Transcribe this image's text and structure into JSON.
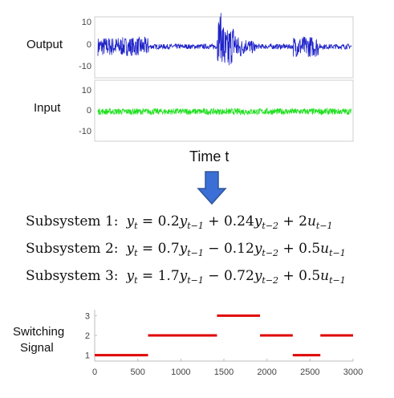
{
  "top_panel": {
    "output_label": "Output",
    "input_label": "Input",
    "time_label": "Time t",
    "output_yticks": [
      "10",
      "0",
      "-10"
    ],
    "input_yticks": [
      "10",
      "0",
      "-10"
    ],
    "output_color": "#1f23c8",
    "input_color": "#22e022"
  },
  "arrow_color": "#3b6fd6",
  "equations": [
    {
      "label": "Subsystem 1:",
      "lhs": "y",
      "lhs_sub": "t",
      "terms": [
        {
          "op": "=",
          "coef": "0.2",
          "var": "y",
          "sub": "t−1"
        },
        {
          "op": "+",
          "coef": "0.24",
          "var": "y",
          "sub": "t−2"
        },
        {
          "op": "+",
          "coef": "2",
          "var": "u",
          "sub": "t−1"
        }
      ]
    },
    {
      "label": "Subsystem 2:",
      "lhs": "y",
      "lhs_sub": "t",
      "terms": [
        {
          "op": "=",
          "coef": "0.7",
          "var": "y",
          "sub": "t−1"
        },
        {
          "op": "−",
          "coef": "0.12",
          "var": "y",
          "sub": "t−2"
        },
        {
          "op": "+",
          "coef": "0.5",
          "var": "u",
          "sub": "t−1"
        }
      ]
    },
    {
      "label": "Subsystem 3:",
      "lhs": "y",
      "lhs_sub": "t",
      "terms": [
        {
          "op": "=",
          "coef": "1.7",
          "var": "y",
          "sub": "t−1"
        },
        {
          "op": "−",
          "coef": "0.72",
          "var": "y",
          "sub": "t−2"
        },
        {
          "op": "+",
          "coef": "0.5",
          "var": "u",
          "sub": "t−1"
        }
      ]
    }
  ],
  "switching": {
    "label_line1": "Switching",
    "label_line2": "Signal",
    "color": "#e00000",
    "xticks": [
      "0",
      "500",
      "1000",
      "1500",
      "2000",
      "2500",
      "3000"
    ],
    "yticks": [
      "3",
      "2",
      "1"
    ]
  },
  "chart_data": {
    "type": "line",
    "xlim": [
      0,
      3000
    ],
    "ylim": [
      0.7,
      3.3
    ],
    "segments": [
      {
        "x0": 0,
        "x1": 620,
        "y": 1
      },
      {
        "x0": 620,
        "x1": 1420,
        "y": 2
      },
      {
        "x0": 1420,
        "x1": 1920,
        "y": 3
      },
      {
        "x0": 1920,
        "x1": 2300,
        "y": 2
      },
      {
        "x0": 2300,
        "x1": 2620,
        "y": 1
      },
      {
        "x0": 2620,
        "x1": 3000,
        "y": 2
      }
    ],
    "grid": false
  }
}
